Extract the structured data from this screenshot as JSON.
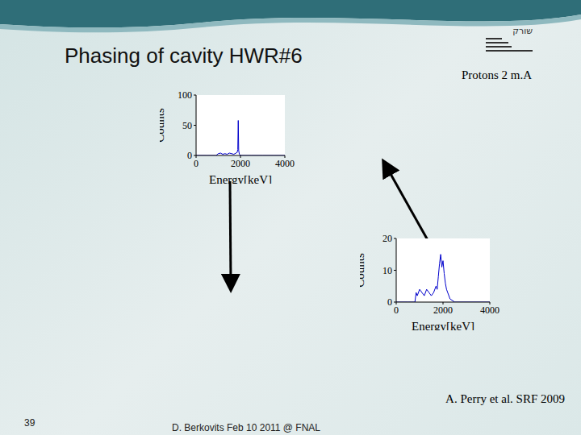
{
  "slide": {
    "title": "Phasing of cavity HWR#6",
    "subtitle": "Protons 2 m.A",
    "logo_text": "שורק",
    "citation": "A. Perry et al. SRF 2009",
    "page_number": "39",
    "footer": "D. Berkovits Feb 10 2011 @ FNAL"
  },
  "chart_data": [
    {
      "type": "line",
      "x_label": "Energy[keV]",
      "y_label": "Counts",
      "x": [
        0,
        500,
        900,
        1000,
        1100,
        1200,
        1300,
        1400,
        1500,
        1600,
        1700,
        1800,
        1850,
        1880,
        1900,
        1920,
        1950,
        2000,
        2500,
        3000,
        3500,
        4000
      ],
      "values": [
        0,
        0,
        0,
        3,
        4,
        2,
        3,
        2,
        4,
        3,
        2,
        4,
        5,
        10,
        58,
        8,
        2,
        0,
        0,
        0,
        0,
        0
      ],
      "color": "#0000cc",
      "xlim": [
        0,
        4000
      ],
      "xticks": [
        0,
        2000,
        4000
      ],
      "ylim": [
        0,
        100
      ],
      "yticks": [
        0,
        50,
        100
      ]
    },
    {
      "type": "line",
      "x_label": "Energy[keV]",
      "y_label": "Counts",
      "x": [
        0,
        500,
        800,
        850,
        900,
        1000,
        1100,
        1200,
        1300,
        1400,
        1500,
        1600,
        1700,
        1750,
        1800,
        1850,
        1900,
        1950,
        2000,
        2050,
        2100,
        2150,
        2200,
        2300,
        2500,
        3000,
        4000
      ],
      "values": [
        0,
        0,
        0,
        3,
        2,
        4,
        3,
        2,
        4,
        3,
        2,
        3,
        5,
        4,
        8,
        12,
        15,
        11,
        13,
        9,
        6,
        4,
        3,
        1,
        0,
        0,
        0
      ],
      "color": "#0000cc",
      "xlim": [
        0,
        4000
      ],
      "xticks": [
        0,
        2000,
        4000
      ],
      "ylim": [
        0,
        20
      ],
      "yticks": [
        0,
        10,
        20
      ]
    }
  ]
}
